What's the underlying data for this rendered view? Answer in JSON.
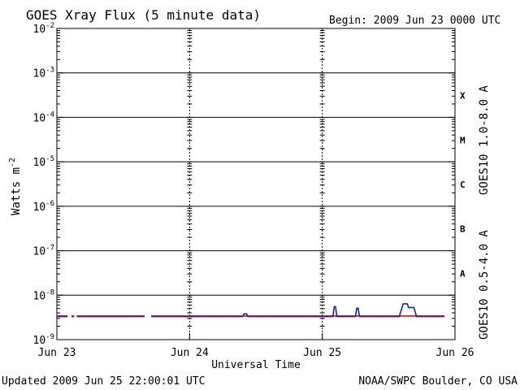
{
  "chart_data": {
    "type": "line",
    "title": "GOES Xray Flux (5 minute data)",
    "begin_label": "Begin:  2009 Jun 23 0000 UTC",
    "xlabel": "Universal Time",
    "ylabel": "Watts m",
    "ylabel_superscript": "-2",
    "updated": "Updated 2009 Jun 25 22:00:01 UTC",
    "credit": "NOAA/SWPC Boulder, CO USA",
    "y_scale": "log",
    "ylim": [
      1e-09,
      0.01
    ],
    "y_ticks": [
      {
        "value": 0.01,
        "base": "10",
        "exp": "-2"
      },
      {
        "value": 0.001,
        "base": "10",
        "exp": "-3"
      },
      {
        "value": 0.0001,
        "base": "10",
        "exp": "-4"
      },
      {
        "value": 1e-05,
        "base": "10",
        "exp": "-5"
      },
      {
        "value": 1e-06,
        "base": "10",
        "exp": "-6"
      },
      {
        "value": 1e-07,
        "base": "10",
        "exp": "-7"
      },
      {
        "value": 1e-08,
        "base": "10",
        "exp": "-8"
      },
      {
        "value": 1e-09,
        "base": "10",
        "exp": "-9"
      }
    ],
    "x_ticks": [
      {
        "day": 0,
        "label": "Jun 23"
      },
      {
        "day": 1,
        "label": "Jun 24"
      },
      {
        "day": 2,
        "label": "Jun 25"
      },
      {
        "day": 3,
        "label": "Jun 26"
      }
    ],
    "xlim_days": [
      0,
      3
    ],
    "flare_classes": [
      {
        "label": "X",
        "value": 0.00031
      },
      {
        "label": "M",
        "value": 3.1e-05
      },
      {
        "label": "C",
        "value": 3.1e-06
      },
      {
        "label": "B",
        "value": 3.1e-07
      },
      {
        "label": "A",
        "value": 3.1e-08
      }
    ],
    "series": [
      {
        "name": "GOES10 1.0-8.0 A",
        "color": "#d01010",
        "segments": [
          [
            [
              0.0,
              3.4e-09
            ],
            [
              0.08,
              3.4e-09
            ]
          ],
          [
            [
              0.11,
              3.4e-09
            ],
            [
              0.13,
              3.4e-09
            ]
          ],
          [
            [
              0.15,
              3.4e-09
            ],
            [
              0.66,
              3.4e-09
            ]
          ],
          [
            [
              0.71,
              3.4e-09
            ],
            [
              2.92,
              3.4e-09
            ]
          ]
        ]
      },
      {
        "name": "GOES10 0.5-4.0 A",
        "color": "#1020d0",
        "segments": [
          [
            [
              0.0,
              3.3e-09
            ],
            [
              0.08,
              3.3e-09
            ]
          ],
          [
            [
              0.11,
              3.3e-09
            ],
            [
              0.13,
              3.3e-09
            ]
          ],
          [
            [
              0.15,
              3.3e-09
            ],
            [
              0.66,
              3.3e-09
            ]
          ],
          [
            [
              0.71,
              3.3e-09
            ],
            [
              1.4,
              3.3e-09
            ],
            [
              1.41,
              3.8e-09
            ],
            [
              1.43,
              3.8e-09
            ],
            [
              1.44,
              3.3e-09
            ],
            [
              2.08,
              3.3e-09
            ],
            [
              2.09,
              5.5e-09
            ],
            [
              2.1,
              5.5e-09
            ],
            [
              2.11,
              3.3e-09
            ],
            [
              2.25,
              3.3e-09
            ],
            [
              2.26,
              5.1e-09
            ],
            [
              2.27,
              5.1e-09
            ],
            [
              2.28,
              3.3e-09
            ],
            [
              2.58,
              3.3e-09
            ],
            [
              2.6,
              5.2e-09
            ],
            [
              2.61,
              6.4e-09
            ],
            [
              2.64,
              6.4e-09
            ],
            [
              2.65,
              5.3e-09
            ],
            [
              2.69,
              5.3e-09
            ],
            [
              2.71,
              3.3e-09
            ],
            [
              2.92,
              3.3e-09
            ]
          ]
        ]
      }
    ],
    "grid": true,
    "legend": "right-vertical"
  }
}
